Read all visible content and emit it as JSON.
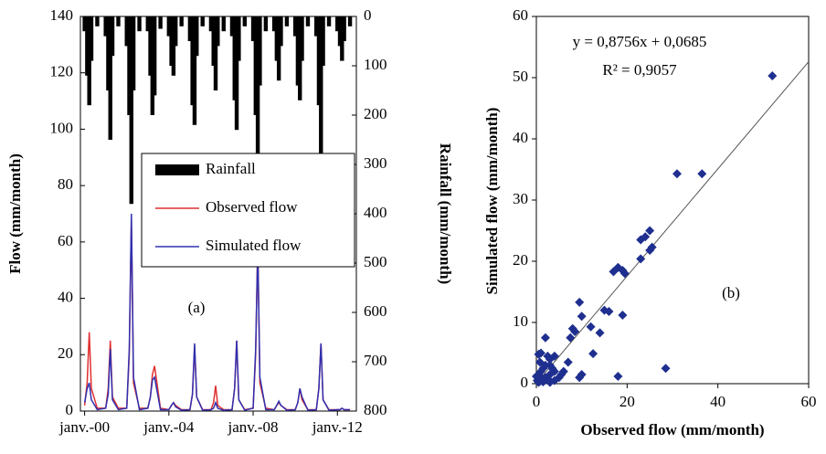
{
  "chart_data": [
    {
      "type": "line",
      "ylabel": "Flow (mm/month)",
      "y2label": "Rainfall (mm/month)",
      "annotation": "(a)",
      "x": [
        2000,
        2000.12,
        2000.22,
        2000.32,
        2000.6,
        2001,
        2001.12,
        2001.22,
        2001.32,
        2001.6,
        2002,
        2002.12,
        2002.22,
        2002.32,
        2002.6,
        2003,
        2003.12,
        2003.22,
        2003.32,
        2003.6,
        2004,
        2004.12,
        2004.22,
        2004.32,
        2004.6,
        2005,
        2005.12,
        2005.22,
        2005.32,
        2005.6,
        2006,
        2006.12,
        2006.22,
        2006.32,
        2006.6,
        2007,
        2007.12,
        2007.22,
        2007.32,
        2007.6,
        2008,
        2008.12,
        2008.22,
        2008.32,
        2008.6,
        2009,
        2009.12,
        2009.22,
        2009.32,
        2009.6,
        2010,
        2010.12,
        2010.22,
        2010.32,
        2010.6,
        2011,
        2011.12,
        2011.22,
        2011.32,
        2011.6,
        2012,
        2012.12,
        2012.22,
        2012.32,
        2012.6
      ],
      "xlim": [
        1999.8,
        2012.9
      ],
      "xticks": [
        {
          "value": 2000,
          "label": "janv.-00"
        },
        {
          "value": 2004,
          "label": "janv.-04"
        },
        {
          "value": 2008,
          "label": "janv.-08"
        },
        {
          "value": 2012,
          "label": "janv.-12"
        }
      ],
      "ylim": [
        0,
        140
      ],
      "yticks": [
        0,
        20,
        40,
        60,
        80,
        100,
        120,
        140
      ],
      "y2lim": [
        800,
        0
      ],
      "y2ticks": [
        0,
        100,
        200,
        300,
        400,
        500,
        600,
        700,
        800
      ],
      "series": [
        {
          "name": "Rainfall",
          "type": "bar",
          "axis": "y2",
          "color": "#000000",
          "values": [
            30,
            120,
            180,
            90,
            20,
            40,
            150,
            250,
            80,
            20,
            60,
            200,
            380,
            150,
            30,
            30,
            120,
            200,
            160,
            25,
            40,
            100,
            120,
            60,
            20,
            50,
            180,
            220,
            80,
            20,
            30,
            100,
            150,
            60,
            30,
            40,
            170,
            230,
            90,
            20,
            50,
            200,
            330,
            140,
            30,
            30,
            90,
            130,
            60,
            20,
            40,
            140,
            170,
            90,
            20,
            40,
            180,
            300,
            100,
            20,
            30,
            60,
            90,
            50,
            20
          ]
        },
        {
          "name": "Observed flow",
          "type": "line",
          "color": "#e03030",
          "values": [
            2,
            10,
            28,
            8,
            1,
            1,
            8,
            25,
            5,
            1,
            1,
            20,
            68,
            10,
            1,
            1,
            5,
            13,
            16,
            1,
            0.5,
            2,
            3,
            2,
            0.5,
            0.5,
            6,
            23,
            5,
            0.5,
            0.5,
            3,
            9,
            2,
            0.5,
            0.5,
            8,
            25,
            4,
            0.5,
            1,
            20,
            60,
            10,
            1,
            0.5,
            2,
            3,
            2,
            0.5,
            0.5,
            3,
            8,
            4,
            0.5,
            0.5,
            8,
            24,
            4,
            0.5,
            0.5,
            0.5,
            1,
            0.5,
            0.5
          ]
        },
        {
          "name": "Simulated flow",
          "type": "line",
          "color": "#3030b0",
          "values": [
            3,
            8,
            10,
            4,
            0.5,
            1,
            6,
            22,
            4,
            0.5,
            1,
            22,
            70,
            12,
            0.5,
            1,
            5,
            11,
            12,
            0.5,
            0.5,
            2,
            3,
            1.5,
            0.3,
            0.5,
            6,
            24,
            5,
            0.3,
            0.5,
            1,
            3,
            1,
            0.3,
            0.5,
            8,
            25,
            4,
            0.3,
            1,
            22,
            58,
            12,
            0.5,
            0.5,
            2,
            3.5,
            2,
            0.3,
            0.5,
            3,
            8,
            5,
            0.3,
            0.5,
            8,
            24,
            4,
            0.3,
            0.5,
            0.5,
            1,
            0.5,
            0.5
          ]
        }
      ]
    },
    {
      "type": "scatter",
      "xlabel": "Observed flow (mm/month)",
      "ylabel": "Simulated flow (mm/month)",
      "equation": "y = 0,8756x + 0,0685",
      "r2": "R² = 0,9057",
      "annotation": "(b)",
      "trendline": {
        "slope": 0.8756,
        "intercept": 0.0685
      },
      "xlim": [
        0,
        60
      ],
      "xticks": [
        0,
        20,
        40,
        60
      ],
      "ylim": [
        0,
        60
      ],
      "yticks": [
        0,
        10,
        20,
        30,
        40,
        50,
        60
      ],
      "color": "#1f2f8f",
      "x": [
        52,
        31,
        36.5,
        25,
        24,
        23,
        25.5,
        25,
        23,
        17,
        18,
        19,
        19.5,
        15,
        16,
        19,
        14,
        12,
        12.5,
        10,
        9.5,
        8,
        8.5,
        7.5,
        7,
        10,
        9.5,
        18,
        28.5,
        6,
        5,
        4,
        3,
        3.5,
        2,
        1,
        0.5,
        2.5,
        3,
        2,
        1.5,
        1,
        0.5,
        0.2,
        0.5,
        1,
        2,
        3,
        4,
        1.5,
        2.5,
        0.8,
        0,
        4,
        5.5,
        3,
        1
      ],
      "y": [
        50.3,
        34.3,
        34.3,
        25,
        24,
        23.5,
        22.3,
        21.8,
        20.4,
        18.3,
        19,
        18.5,
        18,
        12,
        11.8,
        11.2,
        8.3,
        9.3,
        4.9,
        11,
        13.3,
        9,
        8.5,
        7.5,
        3.5,
        1.5,
        1,
        1.2,
        2.5,
        2,
        1,
        4.5,
        3,
        2.5,
        7.5,
        5,
        4.8,
        4.5,
        4,
        3,
        2.5,
        2,
        1.5,
        0.5,
        0.2,
        1,
        1,
        1.5,
        0.5,
        0.3,
        0.8,
        3.5,
        1.2,
        2,
        1.5,
        0.2,
        0.5
      ]
    }
  ]
}
